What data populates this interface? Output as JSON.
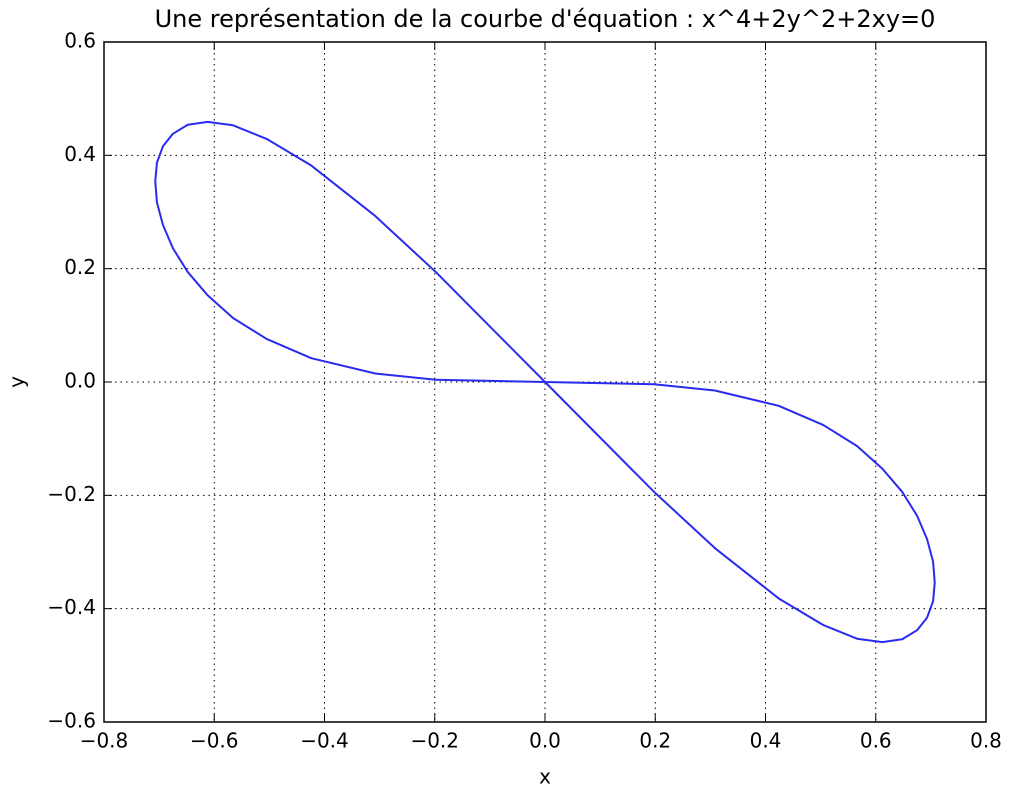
{
  "chart_data": {
    "type": "line",
    "title": "Une représentation de la courbe d'équation : x^4+2y^2+2xy=0",
    "x_label": "x",
    "y_label": "y",
    "color": "#2b2bf0",
    "x": [
      0,
      0.198,
      0.308,
      0.424,
      0.505,
      0.566,
      0.612,
      0.648,
      0.675,
      0.693,
      0.704,
      0.707,
      0.704,
      0.693,
      0.675,
      0.648,
      0.612,
      0.566,
      0.505,
      0.424,
      0.308,
      0.198,
      0,
      -0.198,
      -0.308,
      -0.424,
      -0.505,
      -0.566,
      -0.612,
      -0.648,
      -0.675,
      -0.693,
      -0.704,
      -0.707,
      -0.704,
      -0.693,
      -0.675,
      -0.648,
      -0.612,
      -0.566,
      -0.505,
      -0.424,
      -0.308,
      -0.198,
      0
    ],
    "values": [
      0,
      -0.004,
      -0.015,
      -0.042,
      -0.076,
      -0.113,
      -0.153,
      -0.194,
      -0.236,
      -0.277,
      -0.317,
      -0.354,
      -0.387,
      -0.416,
      -0.438,
      -0.454,
      -0.459,
      -0.453,
      -0.429,
      -0.382,
      -0.293,
      -0.194,
      0,
      0.194,
      0.293,
      0.382,
      0.429,
      0.453,
      0.459,
      0.454,
      0.438,
      0.416,
      0.387,
      0.354,
      0.317,
      0.277,
      0.236,
      0.194,
      0.153,
      0.113,
      0.076,
      0.042,
      0.015,
      0.004,
      0
    ],
    "xlim": [
      -0.8,
      0.8
    ],
    "ylim": [
      -0.6,
      0.6
    ],
    "xticks": [
      {
        "value": -0.8,
        "label": "−0.8"
      },
      {
        "value": -0.6,
        "label": "−0.6"
      },
      {
        "value": -0.4,
        "label": "−0.4"
      },
      {
        "value": -0.2,
        "label": "−0.2"
      },
      {
        "value": 0,
        "label": "0.0"
      },
      0.2,
      0.4,
      0.6,
      0.8
    ],
    "yticks": [
      {
        "value": -0.6,
        "label": "−0.6"
      },
      {
        "value": -0.4,
        "label": "−0.4"
      },
      {
        "value": -0.2,
        "label": "−0.2"
      },
      {
        "value": 0,
        "label": "0.0"
      },
      0.2,
      0.4,
      0.6
    ],
    "grid": true
  }
}
